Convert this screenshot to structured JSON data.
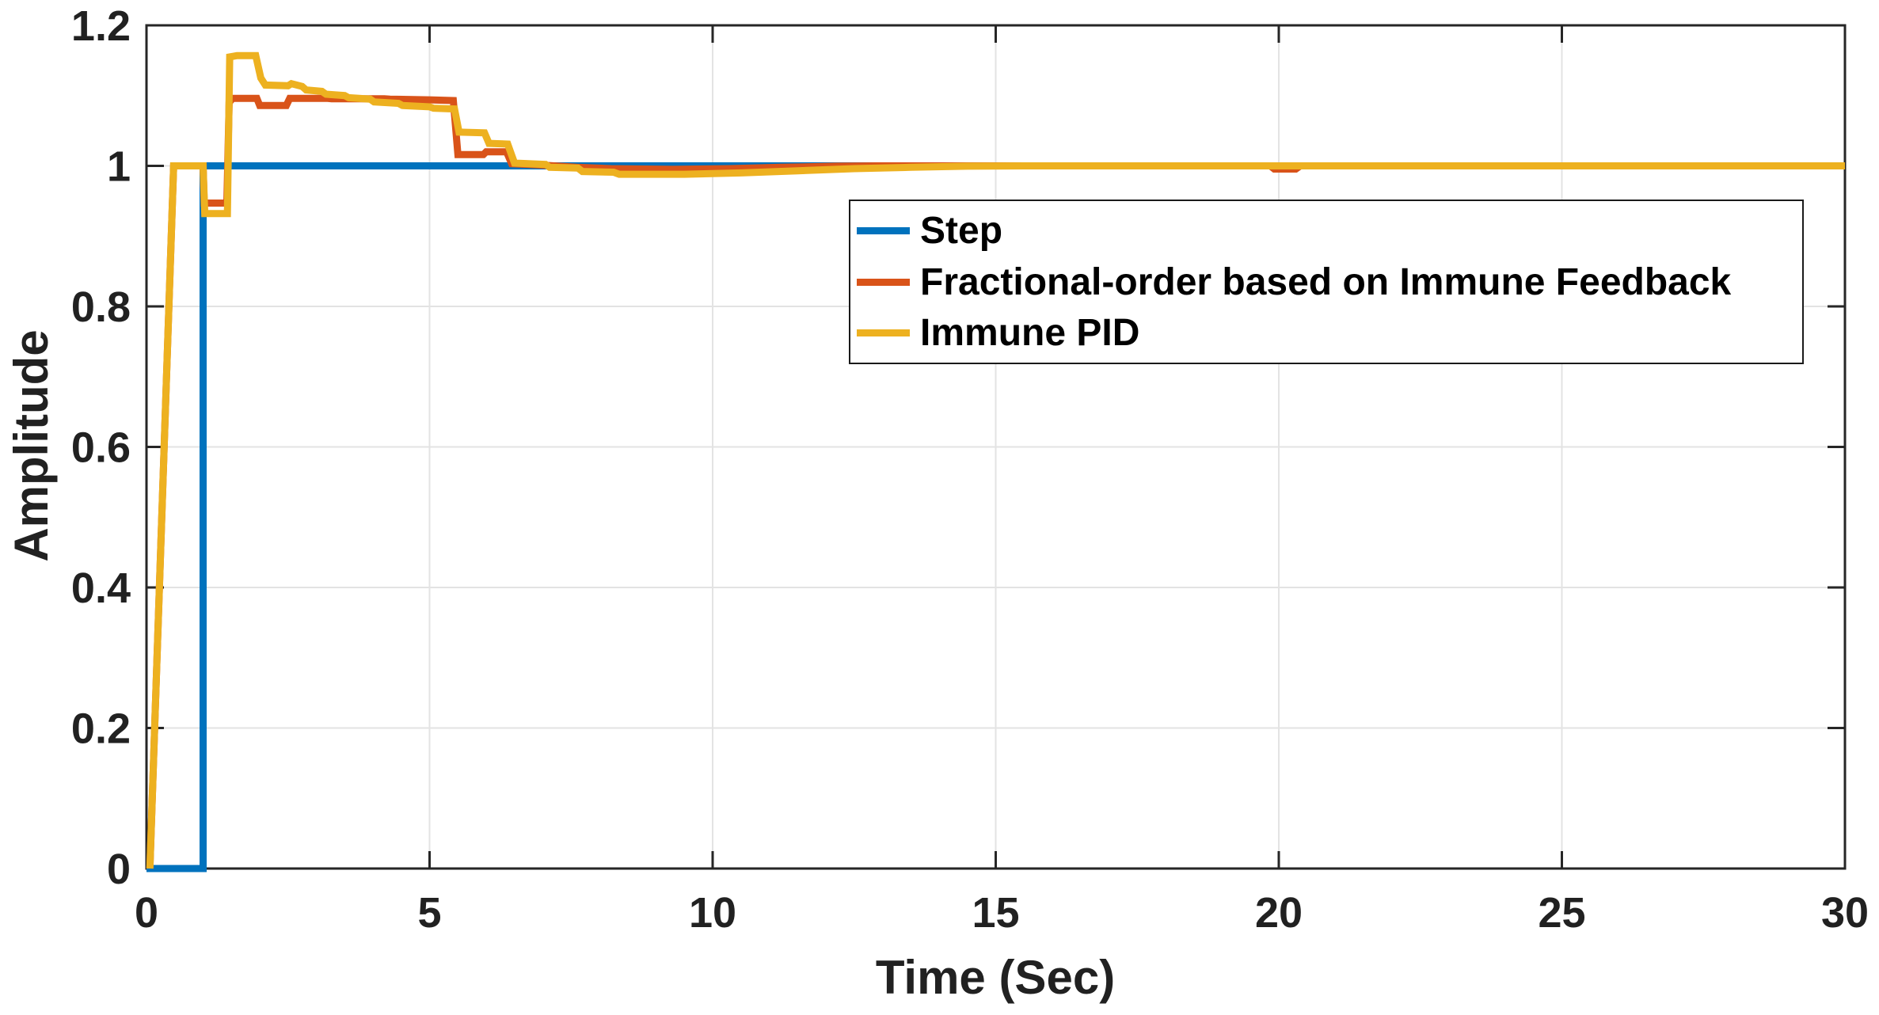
{
  "figure": {
    "xlabel": "Time (Sec)",
    "ylabel": "Amplitude"
  },
  "axis": {
    "x_tick_labels": [
      "0",
      "5",
      "10",
      "15",
      "20",
      "25",
      "30"
    ],
    "y_tick_labels": [
      "0",
      "0.2",
      "0.4",
      "0.6",
      "0.8",
      "1",
      "1.2"
    ],
    "text_color": "#212121",
    "grid_color": "#e3e3e3",
    "axis_color": "#262626",
    "grid_visible": true
  },
  "legend": {
    "items": [
      {
        "label": "Step",
        "color": "#0072BD"
      },
      {
        "label": "Fractional-order based on Immune Feedback",
        "color": "#D95319"
      },
      {
        "label": "Immune PID",
        "color": "#EDB120"
      }
    ]
  },
  "chart_data": {
    "type": "line",
    "title": "",
    "xlabel": "Time (Sec)",
    "ylabel": "Amplitude",
    "xlim": [
      0,
      30
    ],
    "ylim": [
      0,
      1.2
    ],
    "xticks": [
      0,
      5,
      10,
      15,
      20,
      25,
      30
    ],
    "yticks": [
      0,
      0.2,
      0.4,
      0.6,
      0.8,
      1,
      1.2
    ],
    "grid": true,
    "legend_position": "inside-upper-right",
    "line_width": 9,
    "series": [
      {
        "name": "Step",
        "color": "#0072BD",
        "points": [
          [
            0,
            0
          ],
          [
            1,
            0
          ],
          [
            1,
            1
          ],
          [
            30,
            1
          ]
        ]
      },
      {
        "name": "Fractional-order based on Immune Feedback",
        "color": "#D95319",
        "points": [
          [
            0.06,
            0
          ],
          [
            0.48,
            1
          ],
          [
            1,
            1
          ],
          [
            1.02,
            0.947
          ],
          [
            1.42,
            0.947
          ],
          [
            1.46,
            1.09
          ],
          [
            1.52,
            1.096
          ],
          [
            1.95,
            1.096
          ],
          [
            2.0,
            1.086
          ],
          [
            2.47,
            1.086
          ],
          [
            2.53,
            1.096
          ],
          [
            3.2,
            1.096
          ],
          [
            3.27,
            1.0955
          ],
          [
            4.2,
            1.0955
          ],
          [
            4.3,
            1.095
          ],
          [
            5.0,
            1.094
          ],
          [
            5.42,
            1.093
          ],
          [
            5.5,
            1.016
          ],
          [
            5.95,
            1.016
          ],
          [
            6.0,
            1.02
          ],
          [
            6.36,
            1.02
          ],
          [
            6.45,
            1.003
          ],
          [
            7.0,
            1.001
          ],
          [
            7.6,
            0.998
          ],
          [
            8.2,
            0.996
          ],
          [
            9.3,
            0.995
          ],
          [
            10.3,
            0.996
          ],
          [
            11.2,
            0.998
          ],
          [
            12.2,
            0.9995
          ],
          [
            12.9,
            1
          ],
          [
            19.85,
            1
          ],
          [
            19.92,
            0.9955
          ],
          [
            20.3,
            0.9955
          ],
          [
            20.38,
            1
          ],
          [
            30,
            1
          ]
        ]
      },
      {
        "name": "Immune PID",
        "color": "#EDB120",
        "points": [
          [
            0.06,
            0
          ],
          [
            0.48,
            1
          ],
          [
            1,
            1
          ],
          [
            1.03,
            0.932
          ],
          [
            1.43,
            0.932
          ],
          [
            1.47,
            1.155
          ],
          [
            1.6,
            1.157
          ],
          [
            1.93,
            1.157
          ],
          [
            2.02,
            1.125
          ],
          [
            2.1,
            1.115
          ],
          [
            2.5,
            1.114
          ],
          [
            2.56,
            1.117
          ],
          [
            2.75,
            1.113
          ],
          [
            2.82,
            1.108
          ],
          [
            3.1,
            1.106
          ],
          [
            3.17,
            1.102
          ],
          [
            3.5,
            1.1
          ],
          [
            3.57,
            1.097
          ],
          [
            3.95,
            1.095
          ],
          [
            4.02,
            1.091
          ],
          [
            4.45,
            1.089
          ],
          [
            4.52,
            1.086
          ],
          [
            5.0,
            1.084
          ],
          [
            5.07,
            1.082
          ],
          [
            5.44,
            1.081
          ],
          [
            5.52,
            1.048
          ],
          [
            5.97,
            1.047
          ],
          [
            6.05,
            1.032
          ],
          [
            6.38,
            1.031
          ],
          [
            6.5,
            1.004
          ],
          [
            7.05,
            1.002
          ],
          [
            7.12,
            0.998
          ],
          [
            7.62,
            0.997
          ],
          [
            7.7,
            0.992
          ],
          [
            8.25,
            0.991
          ],
          [
            8.35,
            0.988
          ],
          [
            9.5,
            0.988
          ],
          [
            10.5,
            0.99
          ],
          [
            11.5,
            0.993
          ],
          [
            12.5,
            0.996
          ],
          [
            13.5,
            0.998
          ],
          [
            14.5,
            0.9995
          ],
          [
            15.5,
            1
          ],
          [
            30,
            1
          ]
        ]
      }
    ]
  }
}
